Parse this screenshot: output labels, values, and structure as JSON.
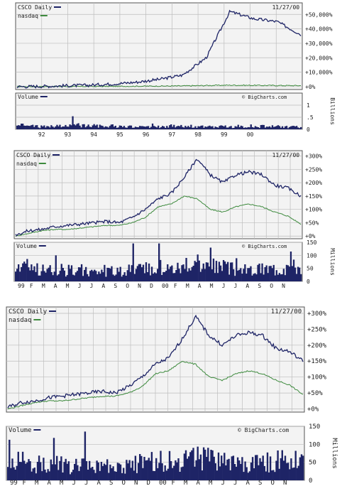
{
  "colors": {
    "csco": "#1e2466",
    "nasdaq": "#3d8a3d",
    "volume": "#1e2466",
    "grid": "#bdbdbd",
    "plot_bg": "#f3f3f3",
    "frame": "#555555"
  },
  "chart_data": [
    {
      "type": "line",
      "chart_title": "CSCO Daily",
      "date": "11/27/00",
      "legend": [
        "CSCO Daily",
        "nasdaq"
      ],
      "watermark": "© BigCharts.com",
      "x_tick_labels": [
        "92",
        "93",
        "94",
        "95",
        "96",
        "97",
        "98",
        "99",
        "00"
      ],
      "price_tick_labels": [
        "+50,000%",
        "+40,000%",
        "+30,000%",
        "+20,000%",
        "+10,000%",
        "+0%"
      ],
      "price_ylim": [
        -2000,
        58000
      ],
      "volume_label": "Volume",
      "volume_tick_labels": [
        "1",
        ".5",
        "0"
      ],
      "volume_unit": "Billions",
      "volume_ylim": [
        0,
        1.5
      ],
      "x": [
        "1991",
        "1992",
        "1993",
        "1994",
        "1995",
        "1996",
        "1997",
        "1998",
        "1999",
        "2000-03",
        "2000-06",
        "2000-09",
        "2000-11"
      ],
      "series": [
        {
          "name": "CSCO Daily",
          "values": [
            0,
            200,
            600,
            1000,
            1800,
            3000,
            5000,
            8000,
            20000,
            52000,
            47000,
            45000,
            36000
          ]
        },
        {
          "name": "nasdaq",
          "values": [
            0,
            50,
            100,
            150,
            200,
            300,
            400,
            500,
            800,
            1000,
            900,
            800,
            700
          ]
        }
      ],
      "volume": [
        0.18,
        0.12,
        0.15,
        0.2,
        0.14,
        0.1,
        0.12,
        0.16,
        0.1,
        0.12,
        0.14,
        0.12,
        0.1
      ]
    },
    {
      "type": "line",
      "chart_title": "CSCO Daily",
      "date": "11/27/00",
      "legend": [
        "CSCO Daily",
        "nasdaq"
      ],
      "watermark": "© BigCharts.com",
      "x_tick_labels": [
        "99",
        "F",
        "M",
        "A",
        "M",
        "J",
        "J",
        "A",
        "S",
        "O",
        "N",
        "D",
        "00",
        "F",
        "M",
        "A",
        "M",
        "J",
        "J",
        "A",
        "S",
        "O",
        "N"
      ],
      "price_tick_labels": [
        "+300%",
        "+250%",
        "+200%",
        "+150%",
        "+100%",
        "+50%",
        "+0%"
      ],
      "price_ylim": [
        -10,
        320
      ],
      "volume_label": "Volume",
      "volume_tick_labels": [
        "150",
        "100",
        "50",
        "0"
      ],
      "volume_unit": "Millions",
      "volume_ylim": [
        0,
        150
      ],
      "x": [
        "1999-01",
        "1999-02",
        "1999-03",
        "1999-04",
        "1999-05",
        "1999-06",
        "1999-07",
        "1999-08",
        "1999-09",
        "1999-10",
        "1999-11",
        "1999-12",
        "2000-01",
        "2000-02",
        "2000-03",
        "2000-04",
        "2000-05",
        "2000-06",
        "2000-07",
        "2000-08",
        "2000-09",
        "2000-10",
        "2000-11"
      ],
      "series": [
        {
          "name": "CSCO Daily",
          "values": [
            5,
            20,
            25,
            35,
            40,
            45,
            50,
            55,
            50,
            70,
            100,
            140,
            160,
            220,
            290,
            230,
            200,
            230,
            240,
            230,
            190,
            180,
            150
          ]
        },
        {
          "name": "nasdaq",
          "values": [
            0,
            10,
            20,
            25,
            25,
            30,
            35,
            40,
            40,
            50,
            70,
            110,
            120,
            150,
            140,
            100,
            90,
            110,
            120,
            110,
            90,
            75,
            45
          ]
        }
      ],
      "volume": [
        45,
        60,
        45,
        50,
        45,
        40,
        42,
        40,
        38,
        45,
        50,
        55,
        55,
        60,
        70,
        60,
        55,
        50,
        45,
        50,
        55,
        60,
        65
      ]
    },
    {
      "type": "line",
      "chart_title": "CSCO Daily",
      "date": "11/27/00",
      "legend": [
        "CSCO Daily",
        "nasdaq"
      ],
      "watermark": "© BigCharts.com",
      "x_tick_labels": [
        "99",
        "F",
        "M",
        "A",
        "M",
        "J",
        "J",
        "A",
        "S",
        "O",
        "N",
        "D",
        "00",
        "F",
        "M",
        "A",
        "M",
        "J",
        "J",
        "A",
        "S",
        "O",
        "N"
      ],
      "price_tick_labels": [
        "+300%",
        "+250%",
        "+200%",
        "+150%",
        "+100%",
        "+50%",
        "+0%"
      ],
      "price_ylim": [
        -10,
        320
      ],
      "volume_label": "Volume",
      "volume_tick_labels": [
        "150",
        "100",
        "50",
        "0"
      ],
      "volume_unit": "Millions",
      "volume_ylim": [
        0,
        150
      ],
      "x": [
        "1999-01",
        "1999-02",
        "1999-03",
        "1999-04",
        "1999-05",
        "1999-06",
        "1999-07",
        "1999-08",
        "1999-09",
        "1999-10",
        "1999-11",
        "1999-12",
        "2000-01",
        "2000-02",
        "2000-03",
        "2000-04",
        "2000-05",
        "2000-06",
        "2000-07",
        "2000-08",
        "2000-09",
        "2000-10",
        "2000-11"
      ],
      "series": [
        {
          "name": "CSCO Daily",
          "values": [
            5,
            20,
            25,
            35,
            40,
            45,
            50,
            55,
            50,
            70,
            100,
            140,
            160,
            220,
            290,
            230,
            200,
            230,
            240,
            230,
            190,
            180,
            150
          ]
        },
        {
          "name": "nasdaq",
          "values": [
            0,
            10,
            20,
            25,
            25,
            30,
            35,
            40,
            40,
            50,
            70,
            110,
            120,
            150,
            140,
            100,
            90,
            110,
            120,
            110,
            90,
            75,
            45
          ]
        }
      ],
      "volume": [
        45,
        60,
        45,
        50,
        45,
        40,
        42,
        40,
        38,
        45,
        50,
        55,
        55,
        60,
        70,
        60,
        55,
        50,
        45,
        50,
        55,
        60,
        65
      ]
    }
  ]
}
